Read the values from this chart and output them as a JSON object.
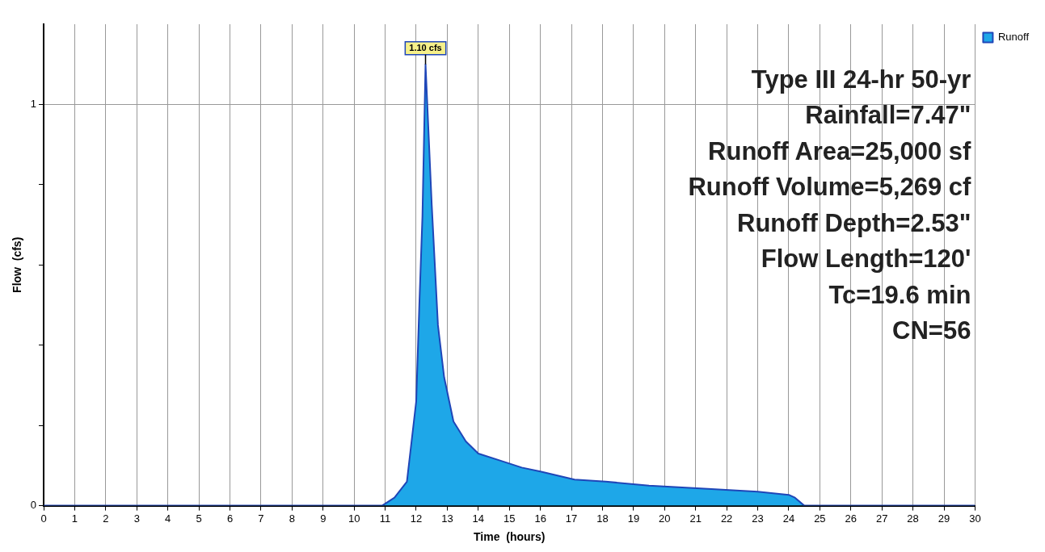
{
  "chart_data": {
    "type": "area",
    "xlabel": "Time  (hours)",
    "ylabel": "Flow  (cfs)",
    "x": [
      0,
      10.9,
      11.3,
      11.7,
      12.0,
      12.1,
      12.2,
      12.3,
      12.5,
      12.7,
      12.9,
      13.2,
      13.6,
      14.0,
      14.8,
      15.4,
      16.0,
      17.1,
      18.1,
      19.5,
      21.4,
      23.0,
      24.0,
      24.2,
      24.5,
      30
    ],
    "series": [
      {
        "name": "Runoff",
        "color": "#1ea7e8",
        "values": [
          0,
          0,
          0.02,
          0.06,
          0.26,
          0.5,
          0.72,
          1.1,
          0.75,
          0.45,
          0.32,
          0.21,
          0.16,
          0.13,
          0.11,
          0.095,
          0.085,
          0.065,
          0.06,
          0.05,
          0.042,
          0.035,
          0.027,
          0.02,
          0,
          0
        ]
      }
    ],
    "xlim": [
      0,
      30
    ],
    "xticks": [
      0,
      1,
      2,
      3,
      4,
      5,
      6,
      7,
      8,
      9,
      10,
      11,
      12,
      13,
      14,
      15,
      16,
      17,
      18,
      19,
      20,
      21,
      22,
      23,
      24,
      25,
      26,
      27,
      28,
      29,
      30
    ],
    "ylim": [
      0,
      1.2
    ],
    "yticks": [
      0,
      {
        "value": 0.2,
        "label": null
      },
      {
        "value": 0.4,
        "label": null
      },
      {
        "value": 0.6,
        "label": null
      },
      {
        "value": 0.8,
        "label": null
      },
      1
    ],
    "grid": true,
    "legend": "top right",
    "annotations": [
      {
        "text": "1.10 cfs",
        "x": 12.3,
        "y": 1.1
      },
      "Type III 24-hr 50-yr",
      "Rainfall=7.47\"",
      "Runoff Area=25,000 sf",
      "Runoff Volume=5,269 cf",
      "Runoff Depth=2.53\"",
      "Flow Length=120'",
      "Tc=19.6 min",
      "CN=56"
    ]
  }
}
